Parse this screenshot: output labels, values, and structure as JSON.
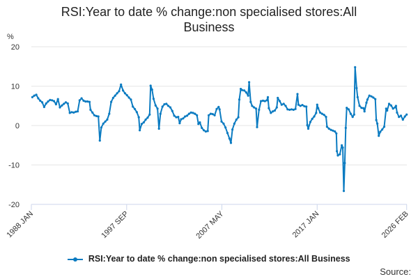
{
  "colors": {
    "series": "#0b7bc1",
    "grid": "#e6e6e6",
    "axis": "#ccd6eb",
    "text": "#333333"
  },
  "chart_data": {
    "type": "line",
    "title_line1": "RSI:Year to date % change:non specialised stores:All",
    "title_line2": "Business",
    "ylabel": "%",
    "ylim": [
      -20,
      20
    ],
    "yticks": [
      -20,
      -10,
      0,
      10,
      20
    ],
    "xlim": [
      1988.0,
      2026.1
    ],
    "xticks": [
      {
        "label": "1988 JAN",
        "year": 1988.0
      },
      {
        "label": "1997 SEP",
        "year": 1997.67
      },
      {
        "label": "2007 MAY",
        "year": 2007.33
      },
      {
        "label": "2017 JAN",
        "year": 2017.0
      },
      {
        "label": "2026 FEB",
        "year": 2026.08
      }
    ],
    "grid": "horizontal",
    "legend": "bottom",
    "series": [
      {
        "name": "RSI:Year to date % change:non specialised stores:All Business",
        "points": [
          [
            1988.1,
            7.2
          ],
          [
            1988.3,
            7.6
          ],
          [
            1988.5,
            7.8
          ],
          [
            1988.7,
            6.9
          ],
          [
            1988.9,
            6.3
          ],
          [
            1989.1,
            5.9
          ],
          [
            1989.3,
            4.7
          ],
          [
            1989.5,
            5.6
          ],
          [
            1989.7,
            6.1
          ],
          [
            1989.9,
            6.5
          ],
          [
            1990.1,
            6.4
          ],
          [
            1990.3,
            6.2
          ],
          [
            1990.5,
            5.4
          ],
          [
            1990.7,
            6.7
          ],
          [
            1990.9,
            4.6
          ],
          [
            1991.1,
            5.1
          ],
          [
            1991.3,
            5.5
          ],
          [
            1991.5,
            5.9
          ],
          [
            1991.7,
            5.6
          ],
          [
            1991.9,
            3.2
          ],
          [
            1992.1,
            3.4
          ],
          [
            1992.3,
            3.3
          ],
          [
            1992.5,
            3.5
          ],
          [
            1992.7,
            3.6
          ],
          [
            1992.9,
            6.4
          ],
          [
            1993.1,
            6.9
          ],
          [
            1993.3,
            6.3
          ],
          [
            1993.5,
            6.1
          ],
          [
            1993.7,
            6.1
          ],
          [
            1993.9,
            6.0
          ],
          [
            1994.0,
            4.0
          ],
          [
            1994.2,
            3.3
          ],
          [
            1994.4,
            2.6
          ],
          [
            1994.6,
            2.4
          ],
          [
            1994.8,
            2.3
          ],
          [
            1994.95,
            -3.8
          ],
          [
            1995.1,
            -0.5
          ],
          [
            1995.3,
            0.5
          ],
          [
            1995.5,
            1.0
          ],
          [
            1995.7,
            1.5
          ],
          [
            1995.9,
            3.0
          ],
          [
            1996.1,
            6.0
          ],
          [
            1996.3,
            7.0
          ],
          [
            1996.5,
            7.6
          ],
          [
            1996.7,
            8.2
          ],
          [
            1996.9,
            8.7
          ],
          [
            1997.1,
            10.4
          ],
          [
            1997.3,
            8.9
          ],
          [
            1997.5,
            8.2
          ],
          [
            1997.7,
            7.7
          ],
          [
            1997.9,
            7.1
          ],
          [
            1998.1,
            6.6
          ],
          [
            1998.3,
            4.8
          ],
          [
            1998.5,
            4.2
          ],
          [
            1998.7,
            3.4
          ],
          [
            1998.9,
            2.1
          ],
          [
            1999.0,
            -1.2
          ],
          [
            1999.2,
            0.4
          ],
          [
            1999.4,
            0.8
          ],
          [
            1999.6,
            1.5
          ],
          [
            1999.8,
            2.0
          ],
          [
            2000.0,
            2.8
          ],
          [
            2000.1,
            10.1
          ],
          [
            2000.25,
            9.1
          ],
          [
            2000.4,
            6.8
          ],
          [
            2000.6,
            5.1
          ],
          [
            2000.8,
            4.3
          ],
          [
            2000.95,
            -0.8
          ],
          [
            2001.1,
            3.0
          ],
          [
            2001.3,
            4.8
          ],
          [
            2001.5,
            5.4
          ],
          [
            2001.7,
            5.5
          ],
          [
            2001.9,
            5.0
          ],
          [
            2002.1,
            4.6
          ],
          [
            2002.3,
            3.7
          ],
          [
            2002.5,
            2.5
          ],
          [
            2002.7,
            2.1
          ],
          [
            2002.9,
            2.2
          ],
          [
            2003.05,
            0.6
          ],
          [
            2003.2,
            1.6
          ],
          [
            2003.4,
            1.8
          ],
          [
            2003.6,
            2.3
          ],
          [
            2003.8,
            2.5
          ],
          [
            2004.0,
            3.0
          ],
          [
            2004.2,
            3.3
          ],
          [
            2004.4,
            3.2
          ],
          [
            2004.6,
            3.0
          ],
          [
            2004.8,
            2.6
          ],
          [
            2004.95,
            0.4
          ],
          [
            2005.1,
            0.8
          ],
          [
            2005.3,
            -0.6
          ],
          [
            2005.5,
            -1.2
          ],
          [
            2005.7,
            -1.5
          ],
          [
            2005.9,
            -1.4
          ],
          [
            2006.0,
            2.6
          ],
          [
            2006.2,
            3.0
          ],
          [
            2006.4,
            2.9
          ],
          [
            2006.6,
            2.6
          ],
          [
            2006.8,
            4.2
          ],
          [
            2007.0,
            4.7
          ],
          [
            2007.1,
            4.1
          ],
          [
            2007.3,
            1.0
          ],
          [
            2007.5,
            0.5
          ],
          [
            2007.7,
            -0.5
          ],
          [
            2007.9,
            -1.9
          ],
          [
            2008.1,
            -3.3
          ],
          [
            2008.25,
            -4.4
          ],
          [
            2008.4,
            -1.0
          ],
          [
            2008.6,
            0.5
          ],
          [
            2008.8,
            1.5
          ],
          [
            2009.0,
            2.1
          ],
          [
            2009.1,
            6.6
          ],
          [
            2009.25,
            9.3
          ],
          [
            2009.4,
            9.0
          ],
          [
            2009.6,
            8.9
          ],
          [
            2009.8,
            8.4
          ],
          [
            2010.0,
            7.6
          ],
          [
            2010.1,
            11.0
          ],
          [
            2010.25,
            6.0
          ],
          [
            2010.4,
            5.0
          ],
          [
            2010.6,
            4.6
          ],
          [
            2010.8,
            4.3
          ],
          [
            2010.9,
            -0.4
          ],
          [
            2011.1,
            4.0
          ],
          [
            2011.3,
            6.2
          ],
          [
            2011.5,
            6.3
          ],
          [
            2011.7,
            6.2
          ],
          [
            2011.9,
            6.4
          ],
          [
            2012.0,
            7.2
          ],
          [
            2012.1,
            4.4
          ],
          [
            2012.3,
            3.2
          ],
          [
            2012.5,
            3.6
          ],
          [
            2012.7,
            3.8
          ],
          [
            2012.9,
            4.6
          ],
          [
            2013.0,
            7.0
          ],
          [
            2013.2,
            6.2
          ],
          [
            2013.4,
            5.3
          ],
          [
            2013.6,
            5.5
          ],
          [
            2013.8,
            5.0
          ],
          [
            2014.0,
            4.1
          ],
          [
            2014.2,
            4.0
          ],
          [
            2014.4,
            4.1
          ],
          [
            2014.6,
            4.0
          ],
          [
            2014.8,
            4.2
          ],
          [
            2015.0,
            8.0
          ],
          [
            2015.1,
            5.3
          ],
          [
            2015.3,
            5.0
          ],
          [
            2015.5,
            5.2
          ],
          [
            2015.7,
            4.9
          ],
          [
            2015.9,
            4.8
          ],
          [
            2016.0,
            0.1
          ],
          [
            2016.1,
            -0.8
          ],
          [
            2016.3,
            0.9
          ],
          [
            2016.5,
            1.7
          ],
          [
            2016.7,
            2.3
          ],
          [
            2016.9,
            3.2
          ],
          [
            2017.0,
            5.3
          ],
          [
            2017.1,
            4.4
          ],
          [
            2017.3,
            3.3
          ],
          [
            2017.5,
            3.0
          ],
          [
            2017.7,
            2.7
          ],
          [
            2017.9,
            2.2
          ],
          [
            2018.0,
            -0.3
          ],
          [
            2018.2,
            -0.8
          ],
          [
            2018.4,
            -1.1
          ],
          [
            2018.6,
            -1.3
          ],
          [
            2018.8,
            -1.5
          ],
          [
            2018.95,
            -2.0
          ],
          [
            2019.0,
            -6.5
          ],
          [
            2019.1,
            -7.6
          ],
          [
            2019.3,
            -7.3
          ],
          [
            2019.5,
            -5.0
          ],
          [
            2019.6,
            -5.6
          ],
          [
            2019.7,
            -16.6
          ],
          [
            2019.8,
            -9.5
          ],
          [
            2019.9,
            -0.6
          ],
          [
            2020.0,
            4.5
          ],
          [
            2020.2,
            4.1
          ],
          [
            2020.4,
            3.0
          ],
          [
            2020.6,
            2.2
          ],
          [
            2020.75,
            2.8
          ],
          [
            2020.85,
            14.8
          ],
          [
            2021.0,
            9.5
          ],
          [
            2021.1,
            7.2
          ],
          [
            2021.3,
            5.0
          ],
          [
            2021.5,
            4.5
          ],
          [
            2021.7,
            4.4
          ],
          [
            2021.8,
            3.6
          ],
          [
            2022.0,
            5.8
          ],
          [
            2022.1,
            6.6
          ],
          [
            2022.3,
            7.6
          ],
          [
            2022.5,
            7.4
          ],
          [
            2022.7,
            7.1
          ],
          [
            2022.9,
            6.7
          ],
          [
            2023.0,
            1.4
          ],
          [
            2023.1,
            0.5
          ],
          [
            2023.25,
            -2.6
          ],
          [
            2023.4,
            -1.6
          ],
          [
            2023.6,
            -1.0
          ],
          [
            2023.8,
            -0.3
          ],
          [
            2024.0,
            4.3
          ],
          [
            2024.1,
            3.8
          ],
          [
            2024.3,
            5.5
          ],
          [
            2024.5,
            5.1
          ],
          [
            2024.7,
            4.3
          ],
          [
            2024.9,
            4.6
          ],
          [
            2025.0,
            5.0
          ],
          [
            2025.1,
            3.3
          ],
          [
            2025.3,
            2.2
          ],
          [
            2025.5,
            2.5
          ],
          [
            2025.7,
            1.5
          ],
          [
            2025.9,
            2.3
          ],
          [
            2026.08,
            2.8
          ]
        ]
      }
    ]
  },
  "footer": {
    "source_label": "Source:"
  }
}
